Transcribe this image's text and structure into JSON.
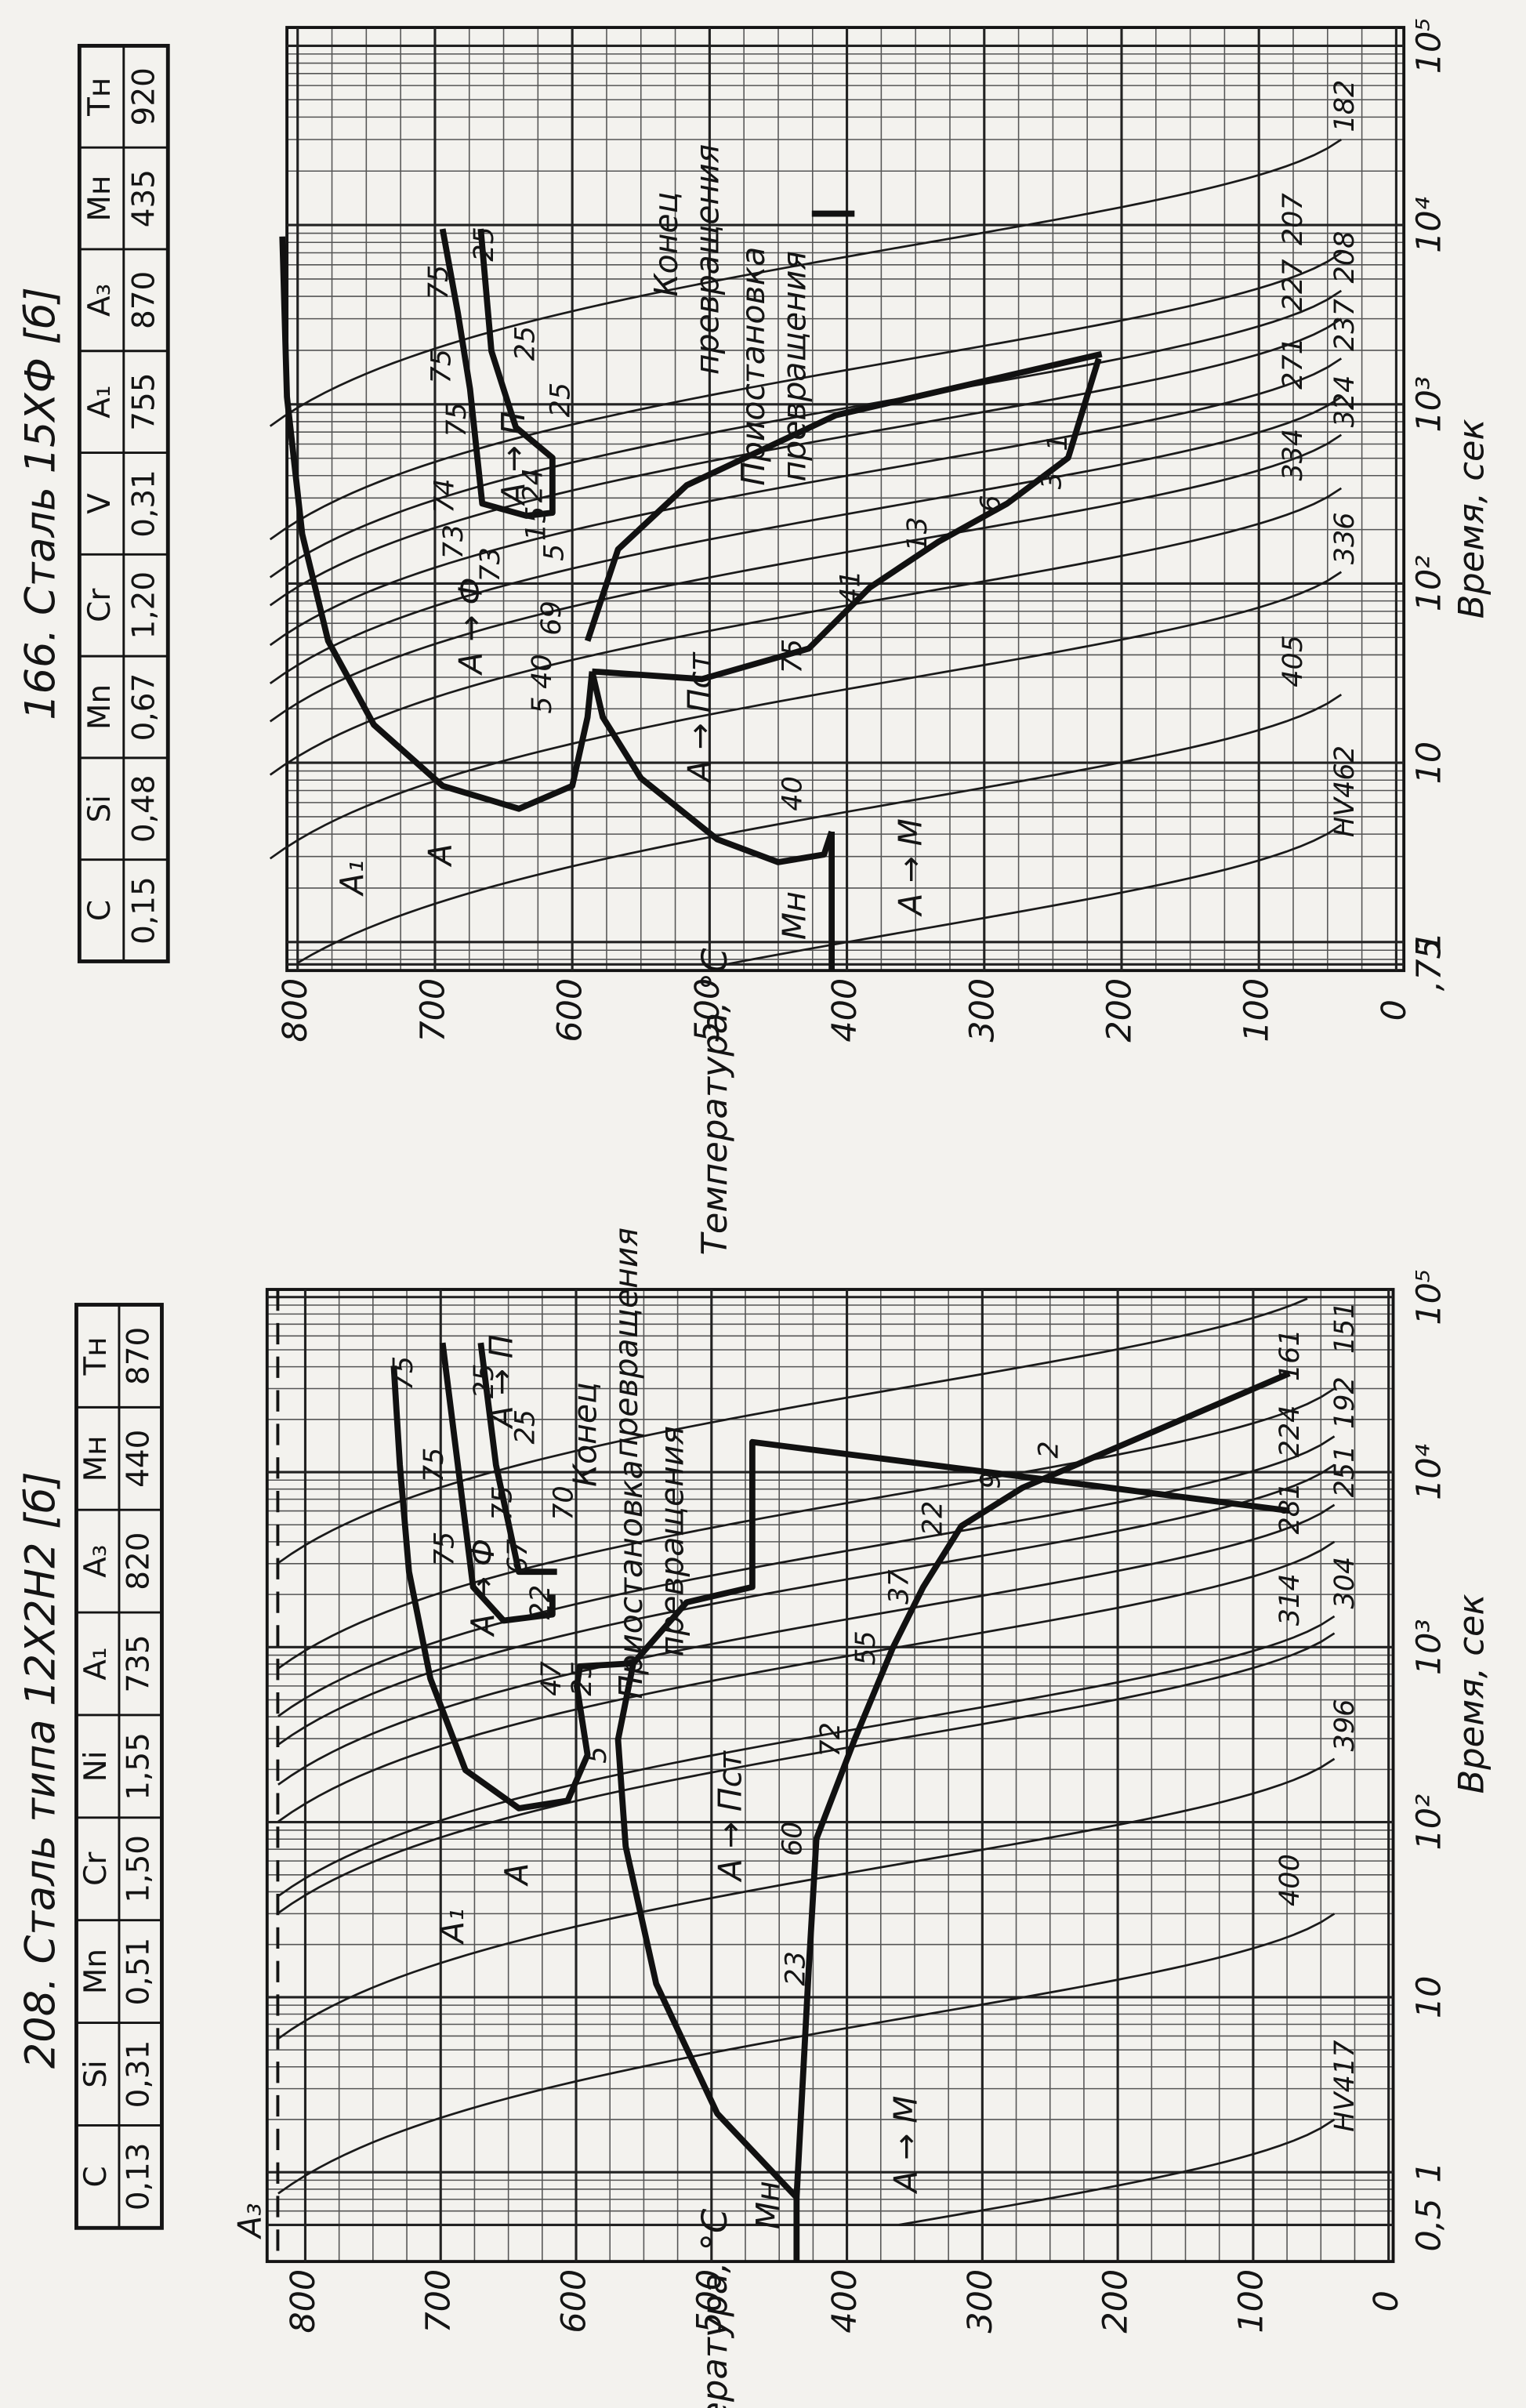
{
  "diagrams": [
    {
      "title": "166. Сталь 15ХФ [б]",
      "table": {
        "header": [
          "C",
          "Si",
          "Mn",
          "Cr",
          "V",
          "A₁",
          "A₃",
          "Mн",
          "Tн"
        ],
        "values": [
          "0,15",
          "0,48",
          "0,67",
          "1,20",
          "0,31",
          "755",
          "870",
          "435",
          "920"
        ]
      },
      "y_label": "Температура, °С",
      "x_label": "Время, сек",
      "temperature_ticks": [
        800,
        700,
        600,
        500,
        400,
        300,
        200,
        100,
        0
      ],
      "time_ticks": [
        {
          "value": 0.75,
          "label": ",75"
        },
        1,
        10,
        {
          "value": 100,
          "label": "10²"
        },
        {
          "value": 1000,
          "label": "10³"
        },
        {
          "value": 10000,
          "label": "10⁴"
        },
        {
          "value": 100000,
          "label": "10⁵"
        }
      ],
      "hardness": [
        "HV462",
        "405",
        "336",
        "334",
        "324",
        "271",
        "237",
        "227",
        "208",
        "207",
        "182"
      ],
      "labels": [
        "A₁",
        "A",
        "A → Ф",
        "A → П",
        "A → Пст",
        "A → M",
        "Mн",
        "Конец",
        "превращения",
        "Приостановка",
        "превращения",
        "75",
        "75",
        "75",
        "74",
        "73",
        "73",
        "25",
        "25",
        "25",
        "24",
        "15",
        "5",
        "69",
        "40",
        "5",
        "75",
        "41",
        "13",
        "6",
        "3",
        "1",
        "40"
      ]
    },
    {
      "title": "208. Сталь типа 12Х2Н2 [б]",
      "table": {
        "header": [
          "C",
          "Si",
          "Mn",
          "Cr",
          "Ni",
          "A₁",
          "A₃",
          "Mн",
          "Tн"
        ],
        "values": [
          "0,13",
          "0,31",
          "0,51",
          "1,50",
          "1,55",
          "735",
          "820",
          "440",
          "870"
        ]
      },
      "y_label": "Температура, °С",
      "x_label": "Время, сек",
      "temperature_ticks": [
        800,
        700,
        600,
        500,
        400,
        300,
        200,
        100,
        0
      ],
      "time_ticks": [
        {
          "value": 0.5,
          "label": "0,5"
        },
        1,
        10,
        {
          "value": 100,
          "label": "10²"
        },
        {
          "value": 1000,
          "label": "10³"
        },
        {
          "value": 10000,
          "label": "10⁴"
        },
        {
          "value": 100000,
          "label": "10⁵"
        }
      ],
      "hardness": [
        "HV417",
        "400",
        "396",
        "314",
        "304",
        "281",
        "251",
        "224",
        "192",
        "161",
        "151"
      ],
      "labels": [
        "A₃",
        "A₁",
        "A",
        "A → Ф",
        "A → П",
        "A → Пст",
        "A → M",
        "Mн",
        "Конец",
        "превращения",
        "Приостановка",
        "превращения",
        "75",
        "75",
        "75",
        "75",
        "25",
        "25",
        "22",
        "70",
        "67",
        "47",
        "25",
        "5",
        "23",
        "60",
        "72",
        "55",
        "37",
        "22",
        "9",
        "2"
      ]
    }
  ]
}
